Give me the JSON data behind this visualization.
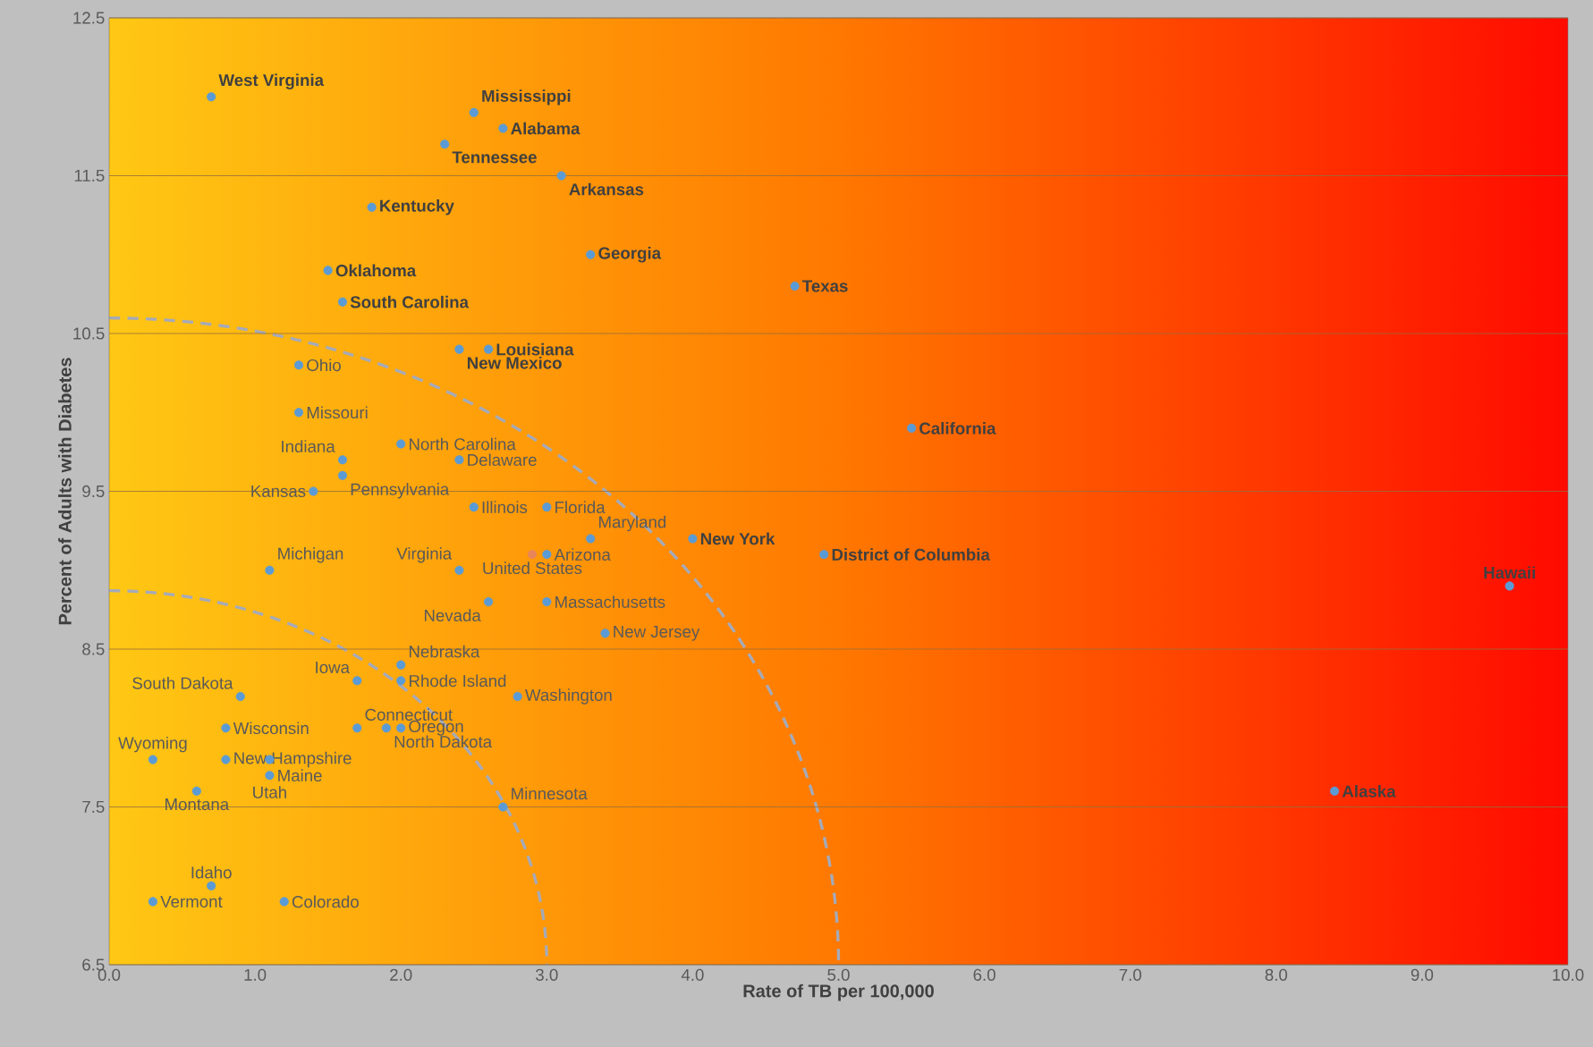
{
  "chart_data": {
    "type": "scatter",
    "xlabel": "Rate of TB per 100,000",
    "ylabel": "Percent of Adults with Diabetes",
    "xlim": [
      0,
      10
    ],
    "ylim": [
      6.5,
      12.5
    ],
    "xticks": [
      {
        "value": 0,
        "label": "0.0"
      },
      {
        "value": 1,
        "label": "1.0"
      },
      {
        "value": 2,
        "label": "2.0"
      },
      {
        "value": 3,
        "label": "3.0"
      },
      {
        "value": 4,
        "label": "4.0"
      },
      {
        "value": 5,
        "label": "5.0"
      },
      {
        "value": 6,
        "label": "6.0"
      },
      {
        "value": 7,
        "label": "7.0"
      },
      {
        "value": 8,
        "label": "8.0"
      },
      {
        "value": 9,
        "label": "9.0"
      },
      {
        "value": 10,
        "label": "10.0"
      }
    ],
    "yticks": [
      6.5,
      7.5,
      8.5,
      9.5,
      10.5,
      11.5,
      12.5
    ],
    "grid": "y",
    "marker": "circle",
    "series": [
      {
        "color": "#5b9bd5",
        "x": [
          0.7,
          2.5,
          2.7,
          2.3,
          3.1,
          1.8,
          3.3,
          4.7,
          1.5,
          1.6,
          2.6,
          2.4,
          5.5,
          4.0,
          4.9,
          9.6,
          8.4
        ],
        "values": [
          12.0,
          11.9,
          11.8,
          11.7,
          11.5,
          11.3,
          11.0,
          10.8,
          10.9,
          10.7,
          10.4,
          10.4,
          9.9,
          9.2,
          9.1,
          8.9,
          7.6
        ],
        "value_labels": [
          "West Virginia",
          "Mississippi",
          "Alabama",
          "Tennessee",
          "Arkansas",
          "Kentucky",
          "Georgia",
          "Texas",
          "Oklahoma",
          "South Carolina",
          "Louisiana",
          "New Mexico",
          "California",
          "New York",
          "District of Columbia",
          "Hawaii",
          "Alaska"
        ]
      },
      {
        "color": "#5b9bd5",
        "x": [
          1.3,
          1.3,
          2.0,
          1.6,
          2.4,
          1.6,
          1.4,
          2.5,
          3.0,
          3.3,
          3.0,
          2.4,
          1.1,
          2.6,
          3.0,
          3.4,
          2.0,
          2.0,
          1.7,
          0.9,
          2.8,
          1.7,
          1.9,
          2.0,
          0.8,
          0.3,
          0.8,
          1.1,
          1.1,
          0.6,
          2.7,
          0.7,
          0.3,
          1.2
        ],
        "values": [
          10.3,
          10.0,
          9.8,
          9.7,
          9.7,
          9.6,
          9.5,
          9.4,
          9.4,
          9.2,
          9.1,
          9.0,
          9.0,
          8.8,
          8.8,
          8.6,
          8.4,
          8.3,
          8.3,
          8.2,
          8.2,
          8.0,
          8.0,
          8.0,
          8.0,
          7.8,
          7.8,
          7.7,
          7.8,
          7.6,
          7.5,
          7.0,
          6.9,
          6.9
        ],
        "value_labels": [
          "Ohio",
          "Missouri",
          "North Carolina",
          "Indiana",
          "Delaware",
          "Pennsylvania",
          "Kansas",
          "Illinois",
          "Florida",
          "Maryland",
          "Arizona",
          "Virginia",
          "Michigan",
          "Nevada",
          "Massachusetts",
          "New Jersey",
          "Nebraska",
          "Rhode Island",
          "Iowa",
          "South Dakota",
          "Washington",
          "Connecticut",
          "North Dakota",
          "Oregon",
          "Wisconsin",
          "Wyoming",
          "New Hampshire",
          "Maine",
          "Utah",
          "Montana",
          "Minnesota",
          "Idaho",
          "Vermont",
          "Colorado"
        ]
      },
      {
        "color": "#e8865a",
        "x": [
          2.9
        ],
        "values": [
          9.1
        ],
        "value_labels": [
          "United States"
        ]
      }
    ]
  }
}
